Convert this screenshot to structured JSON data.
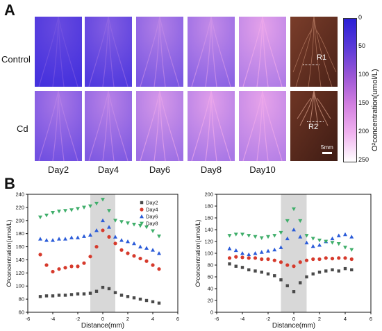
{
  "panel_a": {
    "letter": "A",
    "rows": [
      "Control",
      "Cd"
    ],
    "days": [
      "Day2",
      "Day4",
      "Day6",
      "Day8",
      "Day10"
    ],
    "photo_labels": [
      "R1",
      "R2"
    ],
    "scale_bar": "5mm",
    "tile_tones": [
      [
        0.15,
        0.3,
        0.55,
        0.65,
        0.85
      ],
      [
        0.5,
        0.58,
        0.75,
        0.8,
        0.88
      ]
    ],
    "colorbar": {
      "title": "O²concentration(umol/L)",
      "ticks": [
        "0",
        "50",
        "100",
        "150",
        "200",
        "250"
      ],
      "colors": [
        "#2a1fd6",
        "#5b3ad8",
        "#9b56d6",
        "#d27fe0",
        "#f0b2ef",
        "#ffffff"
      ]
    }
  },
  "panel_b": {
    "letter": "B"
  },
  "chart_data": [
    {
      "type": "scatter",
      "xlabel": "Distance(mm)",
      "ylabel": "O²concentration(umol/L)",
      "xlim": [
        -6,
        6
      ],
      "ylim": [
        60,
        240
      ],
      "xticks": [
        "-6",
        "-4",
        "-2",
        "0",
        "2",
        "4",
        "6"
      ],
      "yticks": [
        "60",
        "80",
        "100",
        "120",
        "140",
        "160",
        "180",
        "200",
        "220",
        "240"
      ],
      "shaded_region": [
        -1,
        1
      ],
      "legend_position": "top-right",
      "series": [
        {
          "name": "Day2",
          "color": "#4a4a4a",
          "marker": "square",
          "x": [
            -5,
            -4.5,
            -4,
            -3.5,
            -3,
            -2.5,
            -2,
            -1.5,
            -1,
            -0.5,
            0,
            0.5,
            1,
            1.5,
            2,
            2.5,
            3,
            3.5,
            4,
            4.5
          ],
          "y": [
            84,
            85,
            85,
            86,
            86,
            87,
            88,
            88,
            89,
            92,
            98,
            96,
            90,
            86,
            84,
            82,
            80,
            78,
            76,
            74
          ]
        },
        {
          "name": "Day4",
          "color": "#d63a2c",
          "marker": "circle",
          "x": [
            -5,
            -4.5,
            -4,
            -3.5,
            -3,
            -2.5,
            -2,
            -1.5,
            -1,
            -0.5,
            0,
            0.5,
            1,
            1.5,
            2,
            2.5,
            3,
            3.5,
            4,
            4.5
          ],
          "y": [
            148,
            132,
            122,
            126,
            128,
            130,
            130,
            135,
            145,
            160,
            185,
            175,
            165,
            155,
            150,
            146,
            142,
            138,
            132,
            126
          ]
        },
        {
          "name": "Day6",
          "color": "#2a5bd8",
          "marker": "triangle-up",
          "x": [
            -5,
            -4.5,
            -4,
            -3.5,
            -3,
            -2.5,
            -2,
            -1.5,
            -1,
            -0.5,
            0,
            0.5,
            1,
            1.5,
            2,
            2.5,
            3,
            3.5,
            4,
            4.5
          ],
          "y": [
            172,
            170,
            170,
            172,
            172,
            174,
            174,
            176,
            178,
            185,
            200,
            190,
            175,
            170,
            168,
            165,
            160,
            158,
            155,
            150
          ]
        },
        {
          "name": "Day8",
          "color": "#3fae6a",
          "marker": "triangle-down",
          "x": [
            -5,
            -4.5,
            -4,
            -3.5,
            -3,
            -2.5,
            -2,
            -1.5,
            -1,
            -0.5,
            0,
            0.5,
            1,
            1.5,
            2,
            2.5,
            3,
            3.5,
            4,
            4.5
          ],
          "y": [
            205,
            208,
            212,
            214,
            215,
            216,
            218,
            220,
            222,
            226,
            232,
            215,
            200,
            198,
            196,
            194,
            192,
            190,
            184,
            176
          ]
        }
      ]
    },
    {
      "type": "scatter",
      "xlabel": "Distance(mm)",
      "ylabel": "O²concentration(umol/L)",
      "xlim": [
        -6,
        6
      ],
      "ylim": [
        0,
        200
      ],
      "xticks": [
        "-6",
        "-4",
        "-2",
        "0",
        "2",
        "4",
        "6"
      ],
      "yticks": [
        "0",
        "20",
        "40",
        "60",
        "80",
        "100",
        "120",
        "140",
        "160",
        "180",
        "200"
      ],
      "shaded_region": [
        -1,
        1
      ],
      "series": [
        {
          "name": "Day2",
          "color": "#4a4a4a",
          "marker": "square",
          "x": [
            -5,
            -4.5,
            -4,
            -3.5,
            -3,
            -2.5,
            -2,
            -1.5,
            -1,
            -0.5,
            0,
            0.5,
            1,
            1.5,
            2,
            2.5,
            3,
            3.5,
            4,
            4.5
          ],
          "y": [
            82,
            78,
            76,
            72,
            70,
            68,
            65,
            62,
            55,
            45,
            35,
            50,
            60,
            65,
            68,
            70,
            72,
            70,
            74,
            72
          ]
        },
        {
          "name": "Day4",
          "color": "#d63a2c",
          "marker": "circle",
          "x": [
            -5,
            -4.5,
            -4,
            -3.5,
            -3,
            -2.5,
            -2,
            -1.5,
            -1,
            -0.5,
            0,
            0.5,
            1,
            1.5,
            2,
            2.5,
            3,
            3.5,
            4,
            4.5
          ],
          "y": [
            92,
            94,
            93,
            92,
            92,
            90,
            90,
            88,
            85,
            80,
            78,
            85,
            88,
            90,
            90,
            92,
            91,
            92,
            92,
            90
          ]
        },
        {
          "name": "Day6",
          "color": "#2a5bd8",
          "marker": "triangle-up",
          "x": [
            -5,
            -4.5,
            -4,
            -3.5,
            -3,
            -2.5,
            -2,
            -1.5,
            -1,
            -0.5,
            0,
            0.5,
            1,
            1.5,
            2,
            2.5,
            3,
            3.5,
            4,
            4.5
          ],
          "y": [
            108,
            105,
            100,
            98,
            100,
            102,
            104,
            106,
            110,
            125,
            140,
            128,
            118,
            112,
            114,
            120,
            125,
            130,
            132,
            128
          ]
        },
        {
          "name": "Day8",
          "color": "#3fae6a",
          "marker": "triangle-down",
          "x": [
            -5,
            -4.5,
            -4,
            -3.5,
            -3,
            -2.5,
            -2,
            -1.5,
            -1,
            -0.5,
            0,
            0.5,
            1,
            1.5,
            2,
            2.5,
            3,
            3.5,
            4,
            4.5
          ],
          "y": [
            130,
            132,
            132,
            130,
            128,
            126,
            128,
            130,
            135,
            155,
            175,
            155,
            130,
            125,
            122,
            120,
            118,
            116,
            110,
            106
          ]
        }
      ]
    }
  ]
}
